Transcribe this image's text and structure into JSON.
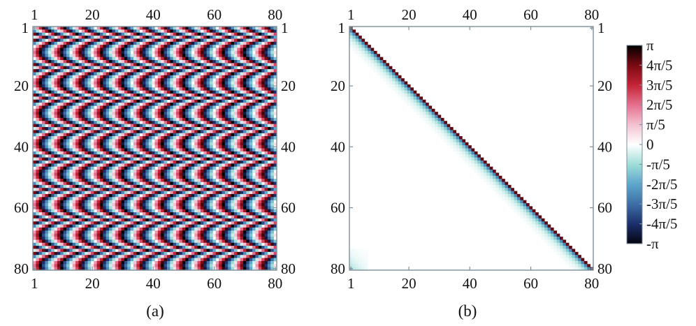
{
  "chart_data": [
    {
      "type": "heatmap",
      "caption": "(a)",
      "matrix_size": 80,
      "structure": "lower-triangular (row >= column); upper triangle empty (value 0)",
      "cell_rule": "phase(i,j) = wrap((i-j) * (-pi/2) + (j-1) * (-pi/5) + (i-1)*(i-2)/2 * (-pi/5)) for j <= i, wrapped to (-pi, pi]",
      "x_ticks": [
        "1",
        "20",
        "40",
        "60",
        "80"
      ],
      "y_ticks": [
        "1",
        "20",
        "40",
        "60",
        "80"
      ],
      "x_tick_values": [
        1,
        20,
        40,
        60,
        80
      ],
      "y_tick_values": [
        1,
        20,
        40,
        60,
        80
      ],
      "xlim": [
        1,
        80
      ],
      "ylim": [
        1,
        80
      ],
      "y_axis_direction": "downward",
      "grid": false
    },
    {
      "type": "heatmap",
      "caption": "(b)",
      "matrix_size": 80,
      "structure": "narrow band just below the main diagonal plus a small corner patch near row 80, column 1; rest 0",
      "cell_rule": "main diagonal ~ pi (dark red); phase decays towards 0 from -pi/2 over ~6 sub-diagonals (blue fading to light cyan); corner block rows 74-80, cols 1-6 faint cyan",
      "band_width": 6,
      "x_ticks": [
        "1",
        "20",
        "40",
        "60",
        "80"
      ],
      "y_ticks": [
        "1",
        "20",
        "40",
        "60",
        "80"
      ],
      "x_tick_values": [
        1,
        20,
        40,
        60,
        80
      ],
      "y_tick_values": [
        1,
        20,
        40,
        60,
        80
      ],
      "xlim": [
        1,
        80
      ],
      "ylim": [
        1,
        80
      ],
      "y_axis_direction": "downward",
      "grid": false
    }
  ],
  "colorbar": {
    "labels": [
      "π",
      "4π/5",
      "3π/5",
      "2π/5",
      "π/5",
      "0",
      "-π/5",
      "-2π/5",
      "-3π/5",
      "-4π/5",
      "-π"
    ],
    "values": [
      1.0,
      0.8,
      0.6,
      0.4,
      0.2,
      0.0,
      -0.2,
      -0.4,
      -0.6,
      -0.8,
      -1.0
    ],
    "unit": "π",
    "colors": {
      "1.0": "#000000",
      "0.8": "#7a0a12",
      "0.6": "#c42436",
      "0.4": "#e5708e",
      "0.2": "#f3c1d2",
      "0.0": "#ffffff",
      "-0.2": "#9fded8",
      "-0.4": "#5ea6cc",
      "-0.6": "#3d6fa6",
      "-0.8": "#1c2f6b",
      "-1.0": "#050510"
    }
  },
  "captions": {
    "a": "(a)",
    "b": "(b)"
  }
}
